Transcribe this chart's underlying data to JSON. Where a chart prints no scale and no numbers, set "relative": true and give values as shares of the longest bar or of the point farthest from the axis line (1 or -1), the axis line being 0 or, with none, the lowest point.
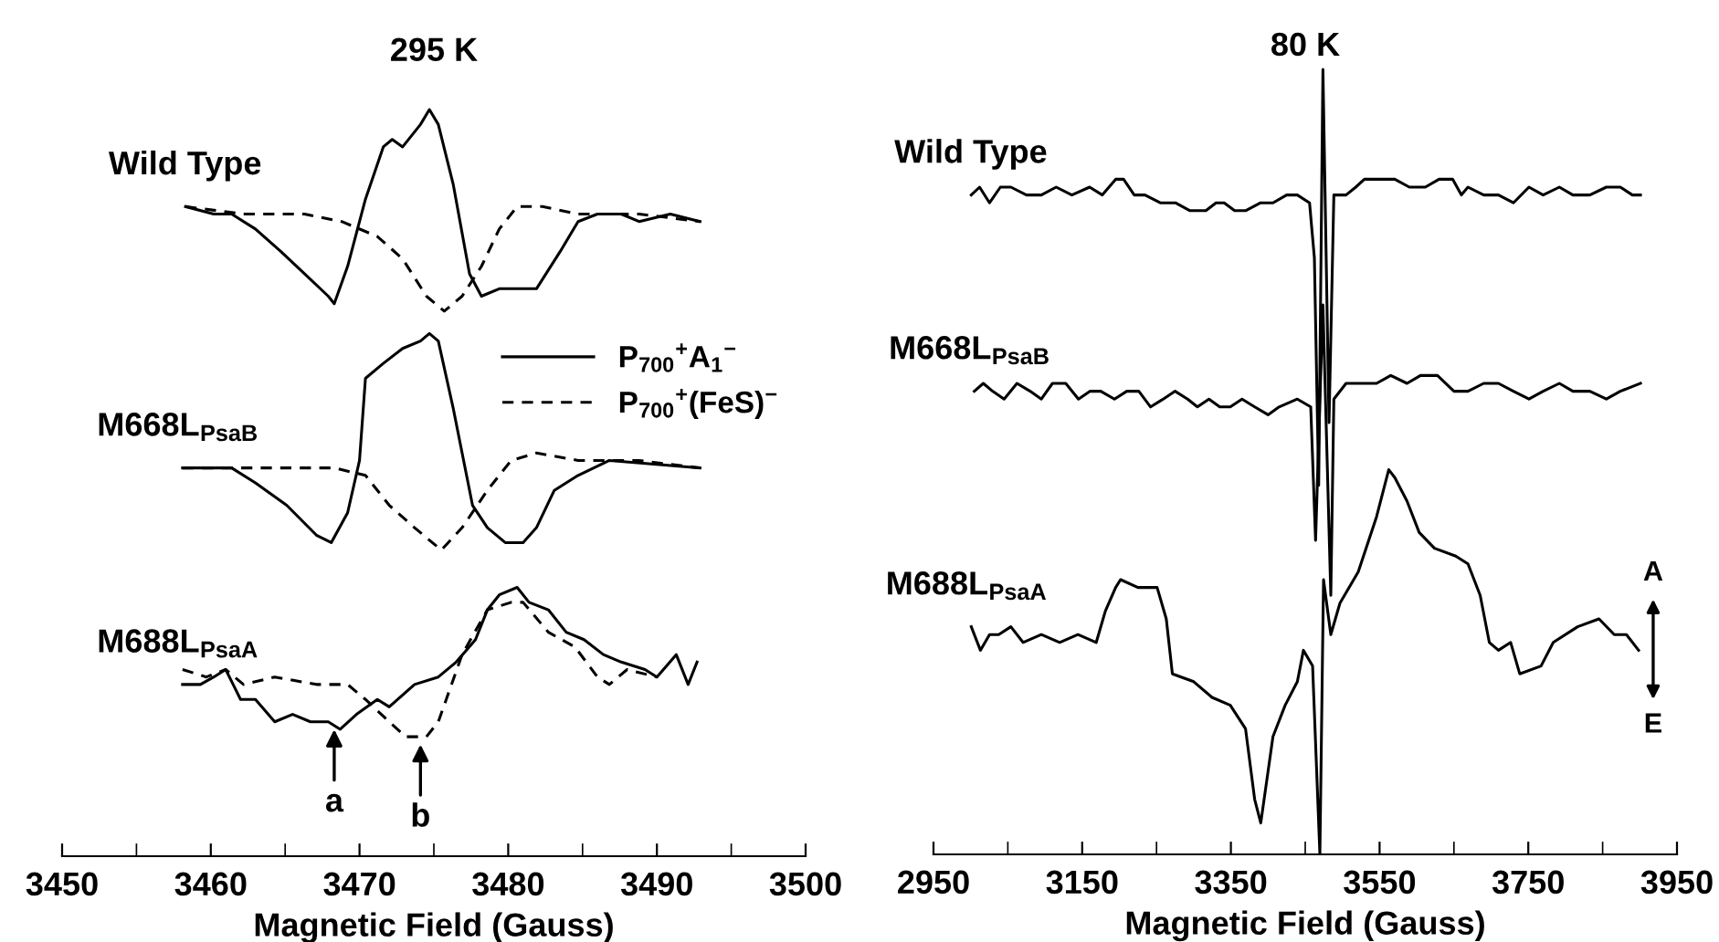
{
  "chart_data": [
    {
      "type": "line",
      "title": "295 K",
      "xlabel": "Magnetic Field (Gauss)",
      "relative": true,
      "legend": "right",
      "grid": false,
      "xlim": [
        3450,
        3500
      ],
      "xticks": [
        3450,
        {
          "value": 3455,
          "label": null
        },
        3460,
        {
          "value": 3465,
          "label": null
        },
        3470,
        {
          "value": 3475,
          "label": null
        },
        3480,
        {
          "value": 3485,
          "label": null
        },
        3490,
        {
          "value": 3495,
          "label": null
        },
        3500
      ],
      "series": [
        {
          "name": "P$_{700}$$^{+}$A$_{1}$$^{−}$",
          "color": "#000000",
          "line_style": "solid",
          "x": [
            3458.3,
            3460.2,
            3461.4,
            3463.0,
            3464.7,
            3466.3,
            3467.9,
            3468.3,
            3469.2,
            3470.4,
            3471.6,
            3472.2,
            3472.9,
            3474.1,
            3474.7,
            3475.3,
            3476.3,
            3477.4,
            3478.2,
            3479.4,
            3481.9,
            3483.5,
            3484.7,
            3486.0,
            3487.6,
            3488.8,
            3490.9,
            3492.9
          ],
          "values": [
            0.87,
            0.86,
            0.86,
            0.84,
            0.81,
            0.78,
            0.75,
            0.74,
            0.79,
            0.88,
            0.95,
            0.96,
            0.95,
            0.98,
            1.0,
            0.98,
            0.9,
            0.78,
            0.75,
            0.76,
            0.76,
            0.81,
            0.85,
            0.86,
            0.86,
            0.85,
            0.86,
            0.85
          ]
        },
        {
          "name": "P$_{700}$$^{+}$(FeS)$^{−}$",
          "color": "#000000",
          "line_style": "dashed",
          "x": [
            3458.3,
            3462.2,
            3466.3,
            3468.8,
            3471.2,
            3472.9,
            3474.5,
            3475.7,
            3476.9,
            3478.2,
            3479.4,
            3480.6,
            3482.3,
            3484.7,
            3488.8,
            3492.9
          ],
          "values": [
            0.87,
            0.86,
            0.86,
            0.85,
            0.83,
            0.8,
            0.75,
            0.73,
            0.75,
            0.79,
            0.84,
            0.87,
            0.87,
            0.86,
            0.86,
            0.85
          ]
        },
        {
          "color": "#000000",
          "line_style": "solid",
          "x": [
            3458.1,
            3461.4,
            3463.0,
            3465.1,
            3467.1,
            3468.1,
            3469.2,
            3470.0,
            3470.4,
            3471.6,
            3472.9,
            3474.1,
            3474.7,
            3475.3,
            3476.3,
            3476.9,
            3477.6,
            3478.6,
            3479.8,
            3481.0,
            3481.9,
            3483.1,
            3484.7,
            3486.8,
            3492.9
          ],
          "values": [
            0.52,
            0.52,
            0.5,
            0.47,
            0.43,
            0.42,
            0.46,
            0.53,
            0.64,
            0.66,
            0.68,
            0.69,
            0.7,
            0.69,
            0.6,
            0.54,
            0.47,
            0.44,
            0.42,
            0.42,
            0.44,
            0.49,
            0.51,
            0.53,
            0.52
          ]
        },
        {
          "color": "#000000",
          "line_style": "dashed",
          "x": [
            3458.1,
            3468.3,
            3470.4,
            3472.0,
            3473.7,
            3475.5,
            3476.9,
            3478.6,
            3480.2,
            3481.9,
            3484.7,
            3488.8,
            3492.9
          ],
          "values": [
            0.52,
            0.52,
            0.51,
            0.47,
            0.44,
            0.41,
            0.44,
            0.49,
            0.53,
            0.54,
            0.53,
            0.53,
            0.52
          ]
        },
        {
          "color": "#000000",
          "line_style": "solid",
          "x": [
            3458.1,
            3459.3,
            3460.2,
            3461.0,
            3462.0,
            3463.0,
            3464.3,
            3465.5,
            3466.7,
            3467.9,
            3468.7,
            3469.8,
            3471.2,
            3472.0,
            3473.7,
            3475.3,
            3476.5,
            3477.8,
            3478.6,
            3479.4,
            3480.6,
            3481.4,
            3482.7,
            3483.9,
            3485.1,
            3486.4,
            3487.6,
            3489.2,
            3490.0,
            3491.3,
            3492.1,
            3492.7
          ],
          "values": [
            0.23,
            0.23,
            0.24,
            0.25,
            0.21,
            0.21,
            0.18,
            0.19,
            0.18,
            0.18,
            0.17,
            0.19,
            0.21,
            0.2,
            0.23,
            0.24,
            0.26,
            0.29,
            0.33,
            0.35,
            0.36,
            0.34,
            0.33,
            0.3,
            0.29,
            0.27,
            0.26,
            0.25,
            0.24,
            0.27,
            0.23,
            0.26
          ]
        },
        {
          "color": "#000000",
          "line_style": "dashed",
          "x": [
            3458.1,
            3459.7,
            3461.0,
            3462.2,
            3464.3,
            3467.1,
            3469.2,
            3470.4,
            3472.0,
            3473.1,
            3474.5,
            3475.3,
            3476.9,
            3478.6,
            3480.2,
            3481.0,
            3482.7,
            3484.5,
            3486.0,
            3486.8,
            3488.0,
            3490.0
          ],
          "values": [
            0.25,
            0.24,
            0.25,
            0.23,
            0.24,
            0.23,
            0.23,
            0.21,
            0.18,
            0.16,
            0.16,
            0.18,
            0.27,
            0.33,
            0.34,
            0.34,
            0.3,
            0.28,
            0.24,
            0.23,
            0.25,
            0.24
          ]
        }
      ],
      "annotations": [
        {
          "text": "Wild Type",
          "x": 3458.3,
          "y": 0.87
        },
        {
          "text": "M668L$_{PsaB}$",
          "x": 3458.1,
          "y": 0.52
        },
        {
          "text": "M688L$_{PsaA}$",
          "x": 3458.1,
          "y": 0.23
        },
        {
          "text": "a",
          "x": 3468.3,
          "y": 0.18
        },
        {
          "text": "b",
          "x": 3474.1,
          "y": 0.16
        }
      ]
    },
    {
      "type": "line",
      "title": "80 K",
      "xlabel": "Magnetic Field (Gauss)",
      "relative": true,
      "grid": false,
      "xlim": [
        2950,
        3950
      ],
      "xticks": [
        2950,
        {
          "value": 3050,
          "label": null
        },
        3150,
        {
          "value": 3250,
          "label": null
        },
        3350,
        {
          "value": 3450,
          "label": null
        },
        3550,
        {
          "value": 3650,
          "label": null
        },
        3750,
        {
          "value": 3850,
          "label": null
        },
        3950
      ],
      "series": [
        {
          "color": "#000000",
          "line_style": "solid",
          "x": [
            3000.8,
            3012.0,
            3025.4,
            3040.0,
            3054.1,
            3075.0,
            3095.1,
            3115.0,
            3136.1,
            3160.0,
            3177.1,
            3195.0,
            3205.7,
            3220.0,
            3234.4,
            3255.0,
            3275.4,
            3295.0,
            3316.4,
            3330.0,
            3341.0,
            3355.0,
            3369.7,
            3390.0,
            3406.6,
            3425.0,
            3439.4,
            3455.8,
            3462.3,
            3468.1,
            3473.8,
            3482.0,
            3488.5,
            3492.6,
            3504.9,
            3518.0,
            3529.5,
            3550.0,
            3570.5,
            3590.0,
            3611.5,
            3630.0,
            3648.4,
            3660.0,
            3668.9,
            3690.0,
            3709.9,
            3730.0,
            3750.9,
            3770.0,
            3791.8,
            3810.0,
            3832.8,
            3855.0,
            3873.8,
            3890.0,
            3900.9
          ],
          "values": [
            0.84,
            0.85,
            0.83,
            0.85,
            0.85,
            0.84,
            0.84,
            0.85,
            0.84,
            0.85,
            0.84,
            0.86,
            0.86,
            0.84,
            0.84,
            0.83,
            0.83,
            0.82,
            0.82,
            0.83,
            0.83,
            0.82,
            0.82,
            0.83,
            0.83,
            0.84,
            0.84,
            0.83,
            0.76,
            0.47,
            1.0,
            0.55,
            0.84,
            0.84,
            0.84,
            0.85,
            0.86,
            0.86,
            0.86,
            0.85,
            0.85,
            0.86,
            0.86,
            0.84,
            0.85,
            0.84,
            0.84,
            0.83,
            0.85,
            0.84,
            0.85,
            0.84,
            0.84,
            0.85,
            0.85,
            0.84,
            0.84
          ]
        },
        {
          "color": "#000000",
          "line_style": "solid",
          "x": [
            3004.9,
            3017.0,
            3029.5,
            3045.0,
            3062.3,
            3080.0,
            3095.1,
            3110.0,
            3127.9,
            3145.0,
            3160.7,
            3175.0,
            3193.4,
            3210.0,
            3226.2,
            3242.0,
            3259.0,
            3275.0,
            3291.8,
            3305.0,
            3320.5,
            3335.0,
            3349.2,
            3365.0,
            3382.0,
            3400.0,
            3414.8,
            3439.4,
            3457.4,
            3463.9,
            3473.8,
            3484.4,
            3488.5,
            3504.9,
            3525.0,
            3545.9,
            3565.0,
            3586.9,
            3605.0,
            3627.9,
            3650.0,
            3668.9,
            3690.0,
            3709.9,
            3730.0,
            3750.9,
            3770.0,
            3791.8,
            3810.0,
            3832.8,
            3855.0,
            3873.8,
            3900.9
          ],
          "values": [
            0.59,
            0.6,
            0.59,
            0.58,
            0.6,
            0.59,
            0.58,
            0.6,
            0.6,
            0.58,
            0.59,
            0.59,
            0.58,
            0.59,
            0.59,
            0.57,
            0.58,
            0.59,
            0.58,
            0.57,
            0.58,
            0.57,
            0.57,
            0.58,
            0.57,
            0.56,
            0.57,
            0.58,
            0.57,
            0.4,
            0.7,
            0.33,
            0.58,
            0.6,
            0.6,
            0.6,
            0.61,
            0.6,
            0.61,
            0.61,
            0.59,
            0.59,
            0.6,
            0.6,
            0.59,
            0.58,
            0.59,
            0.6,
            0.59,
            0.59,
            0.58,
            0.59,
            0.6
          ]
        },
        {
          "color": "#000000",
          "line_style": "solid",
          "x": [
            3000.8,
            3013.1,
            3025.4,
            3037.7,
            3054.1,
            3070.5,
            3095.1,
            3119.7,
            3144.3,
            3168.9,
            3181.2,
            3195.0,
            3201.6,
            3225.0,
            3250.8,
            3263.1,
            3271.3,
            3300.0,
            3324.6,
            3349.2,
            3369.7,
            3382.0,
            3390.2,
            3406.6,
            3423.0,
            3439.4,
            3447.6,
            3459.9,
            3469.7,
            3474.6,
            3484.4,
            3496.7,
            3521.3,
            3545.9,
            3562.3,
            3570.5,
            3586.9,
            3603.3,
            3623.8,
            3652.5,
            3668.9,
            3685.3,
            3697.6,
            3709.9,
            3726.3,
            3738.5,
            3767.2,
            3783.6,
            3816.4,
            3845.1,
            3865.6,
            3882.0,
            3898.4
          ],
          "values": [
            0.29,
            0.26,
            0.28,
            0.28,
            0.29,
            0.27,
            0.28,
            0.27,
            0.28,
            0.27,
            0.31,
            0.34,
            0.35,
            0.34,
            0.34,
            0.3,
            0.23,
            0.22,
            0.2,
            0.19,
            0.16,
            0.07,
            0.04,
            0.15,
            0.19,
            0.22,
            0.26,
            0.24,
            0.0,
            0.35,
            0.28,
            0.32,
            0.36,
            0.43,
            0.49,
            0.48,
            0.45,
            0.41,
            0.39,
            0.38,
            0.37,
            0.33,
            0.27,
            0.26,
            0.27,
            0.23,
            0.24,
            0.27,
            0.29,
            0.3,
            0.28,
            0.28,
            0.26
          ]
        }
      ],
      "annotations": [
        {
          "text": "Wild Type",
          "x": 3000.8,
          "y": 0.84
        },
        {
          "text": "M668L$_{PsaB}$",
          "x": 3004.9,
          "y": 0.59
        },
        {
          "text": "M688L$_{PsaA}$",
          "x": 3000.8,
          "y": 0.29
        },
        "A",
        "E"
      ]
    }
  ]
}
